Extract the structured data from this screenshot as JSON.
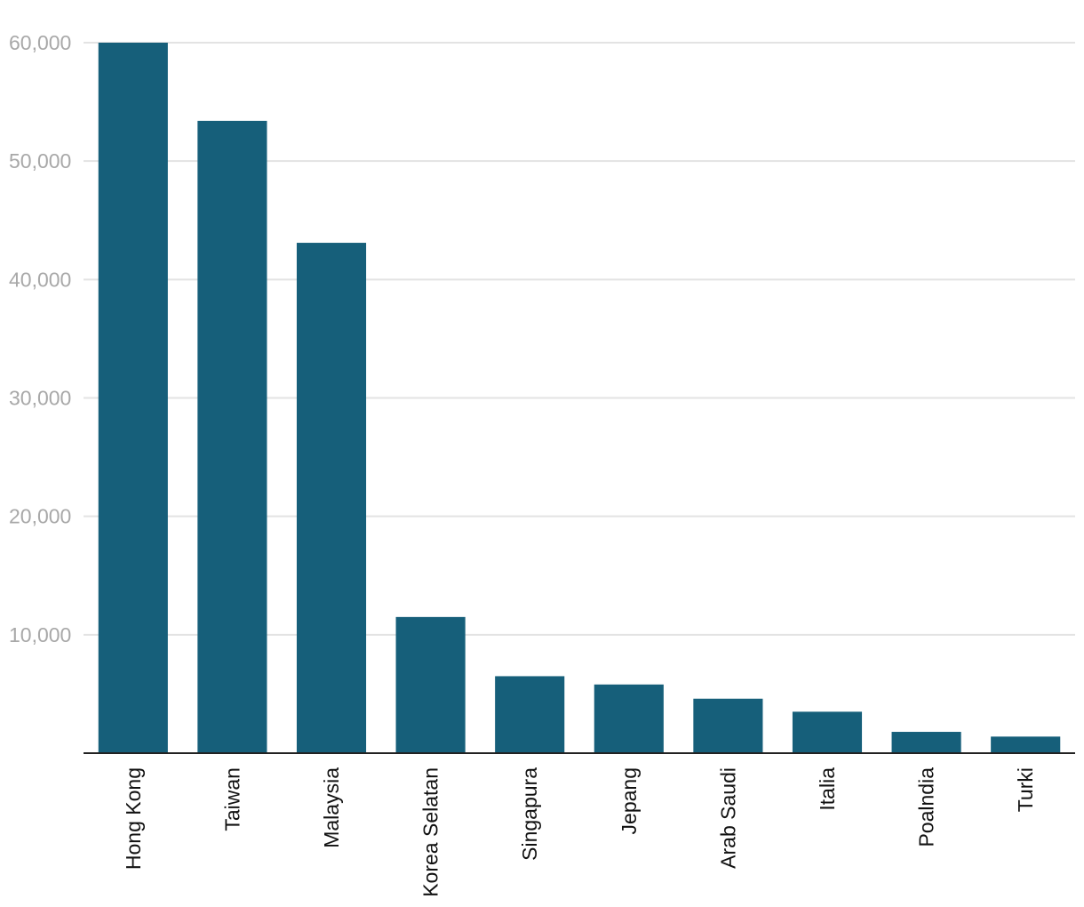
{
  "chart_data": {
    "type": "bar",
    "title": "",
    "xlabel": "",
    "ylabel": "",
    "categories": [
      "Hong Kong",
      "Taiwan",
      "Malaysia",
      "Korea Selatan",
      "Singapura",
      "Jepang",
      "Arab Saudi",
      "Italia",
      "Poalndia",
      "Turki"
    ],
    "values": [
      60000,
      53400,
      43100,
      11500,
      6500,
      5800,
      4600,
      3500,
      1800,
      1400
    ],
    "ylim": [
      0,
      60000
    ],
    "yticks": [
      10000,
      20000,
      30000,
      40000,
      50000,
      60000
    ],
    "ytick_labels": [
      "10,000",
      "20,000",
      "30,000",
      "40,000",
      "50,000",
      "60,000"
    ],
    "grid": true,
    "legend": "none",
    "colors": {
      "bar": "#165f7a",
      "grid": "#e3e3e3",
      "axis": "#222222",
      "tick_text": "#a8a8a8",
      "category_text": "#111111"
    }
  }
}
